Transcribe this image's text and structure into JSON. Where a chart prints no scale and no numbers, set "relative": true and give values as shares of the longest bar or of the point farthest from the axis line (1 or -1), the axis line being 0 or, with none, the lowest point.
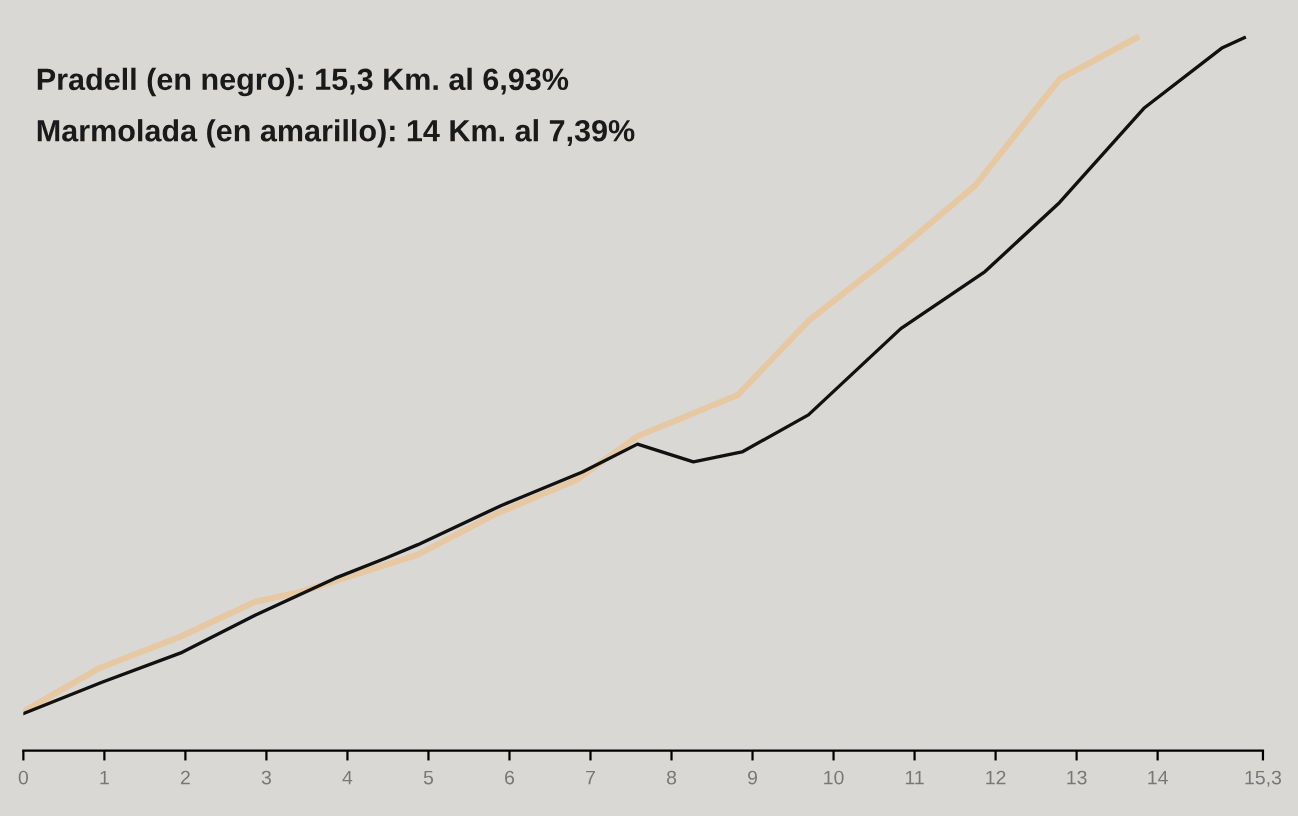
{
  "chart_data": {
    "type": "line",
    "relative": true,
    "annotations": [
      "Pradell (en negro): 15,3 Km. al 6,93%",
      "Marmolada (en amarillo): 14 Km. al 7,39%"
    ],
    "xlim": [
      0,
      15.3
    ],
    "xticks": [
      {
        "value": 0,
        "label": "0"
      },
      1,
      2,
      3,
      4,
      5,
      6,
      7,
      8,
      9,
      10,
      11,
      12,
      13,
      14,
      {
        "value": 15.3,
        "label": "15,3"
      }
    ],
    "marker": "none",
    "line_style": "solid",
    "grid": false,
    "legend": false,
    "series": [
      {
        "color": "#e6c9a2",
        "x": [
          0,
          0.94,
          1.94,
          2.86,
          3.43,
          4.87,
          5.81,
          6.83,
          7.58,
          8.82,
          9.69,
          10.78,
          11.75,
          12.79,
          13.74
        ],
        "values": [
          0.055,
          0.116,
          0.16,
          0.209,
          0.223,
          0.275,
          0.331,
          0.38,
          0.441,
          0.499,
          0.603,
          0.7,
          0.793,
          0.942,
          1
        ]
      },
      {
        "color": "#111111",
        "x": [
          0,
          0.97,
          1.96,
          2.86,
          3.85,
          4.47,
          4.87,
          5.9,
          6.9,
          7.58,
          8.27,
          8.87,
          9.69,
          10.83,
          11.87,
          12.79,
          13.83,
          14.8,
          15.07
        ],
        "values": [
          0.052,
          0.096,
          0.138,
          0.19,
          0.242,
          0.27,
          0.289,
          0.344,
          0.391,
          0.43,
          0.405,
          0.419,
          0.471,
          0.592,
          0.672,
          0.769,
          0.901,
          0.986,
          1
        ]
      }
    ]
  }
}
